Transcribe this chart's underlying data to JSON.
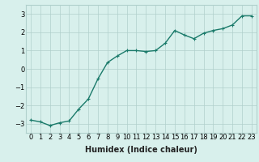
{
  "x": [
    0,
    1,
    2,
    3,
    4,
    5,
    6,
    7,
    8,
    9,
    10,
    11,
    12,
    13,
    14,
    15,
    16,
    17,
    18,
    19,
    20,
    21,
    22,
    23
  ],
  "y": [
    -2.8,
    -2.9,
    -3.1,
    -2.95,
    -2.85,
    -2.2,
    -1.65,
    -0.55,
    0.35,
    0.7,
    1.0,
    1.0,
    0.95,
    1.0,
    1.4,
    2.1,
    1.85,
    1.65,
    1.95,
    2.1,
    2.2,
    2.4,
    2.9,
    2.9
  ],
  "line_color": "#1a7a6a",
  "marker": "+",
  "marker_size": 3,
  "bg_color": "#d8f0ec",
  "grid_color": "#b0d0cc",
  "xlabel": "Humidex (Indice chaleur)",
  "xlim": [
    -0.5,
    23.5
  ],
  "ylim": [
    -3.5,
    3.5
  ],
  "yticks": [
    -3,
    -2,
    -1,
    0,
    1,
    2,
    3
  ],
  "xtick_labels": [
    "0",
    "1",
    "2",
    "3",
    "4",
    "5",
    "6",
    "7",
    "8",
    "9",
    "10",
    "11",
    "12",
    "13",
    "14",
    "15",
    "16",
    "17",
    "18",
    "19",
    "20",
    "21",
    "22",
    "23"
  ],
  "xlabel_fontsize": 7,
  "tick_fontsize": 6,
  "line_width": 1.0
}
